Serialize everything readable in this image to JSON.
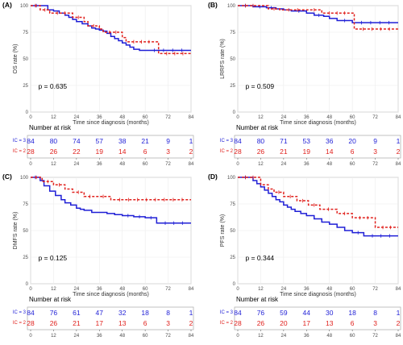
{
  "colors": {
    "ic3": "#1f1fd6",
    "ic2": "#e0211d",
    "grid": "#ececec",
    "frame": "#b3b3b3"
  },
  "chart_data": [
    {
      "type": "line",
      "panel": "(A)",
      "xlabel": "Time since diagnosis (months)",
      "ylabel": "OS rate (%)",
      "xlim": [
        0,
        84
      ],
      "ylim": [
        0,
        100
      ],
      "x_ticks": [
        0,
        12,
        24,
        36,
        48,
        60,
        72,
        84
      ],
      "y_ticks": [
        0,
        25,
        50,
        75,
        100
      ],
      "grid": true,
      "p_value": "p = 0.635",
      "series": [
        {
          "name": "IC = 3",
          "style": "solid",
          "x": [
            0,
            6,
            9,
            12,
            15,
            18,
            20,
            22,
            24,
            27,
            30,
            32,
            34,
            36,
            38,
            40,
            42,
            44,
            46,
            48,
            50,
            52,
            54,
            57,
            60,
            84
          ],
          "values": [
            100,
            100,
            96,
            95,
            93,
            91,
            89,
            87,
            85,
            83,
            81,
            79,
            78,
            77,
            76,
            74,
            71,
            69,
            67,
            65,
            63,
            61,
            59,
            58,
            58,
            58
          ]
        },
        {
          "name": "IC = 2",
          "style": "dashed",
          "x": [
            0,
            5,
            10,
            22,
            28,
            30,
            36,
            38,
            48,
            50,
            66,
            67,
            84
          ],
          "values": [
            100,
            96,
            93,
            89,
            85,
            81,
            78,
            75,
            70,
            66,
            66,
            55,
            55
          ]
        }
      ],
      "risk_table": {
        "title": "Number at risk",
        "times": [
          0,
          12,
          24,
          36,
          48,
          60,
          72,
          84
        ],
        "rows": [
          {
            "label": "IC = 3",
            "values": [
              84,
              80,
              74,
              57,
              38,
              21,
              9,
              1
            ]
          },
          {
            "label": "IC = 2",
            "values": [
              28,
              26,
              22,
              19,
              14,
              6,
              3,
              2
            ]
          }
        ]
      }
    },
    {
      "type": "line",
      "panel": "(B)",
      "xlabel": "Time since diagnosis (months)",
      "ylabel": "LRRFS rate (%)",
      "xlim": [
        0,
        84
      ],
      "ylim": [
        0,
        100
      ],
      "x_ticks": [
        0,
        12,
        24,
        36,
        48,
        60,
        72,
        84
      ],
      "y_ticks": [
        0,
        25,
        50,
        75,
        100
      ],
      "grid": true,
      "p_value": "p = 0.509",
      "series": [
        {
          "name": "IC = 3",
          "style": "solid",
          "x": [
            0,
            8,
            15,
            20,
            24,
            28,
            36,
            40,
            45,
            48,
            52,
            60,
            84
          ],
          "values": [
            100,
            99,
            98,
            97,
            96,
            95,
            93,
            91,
            90,
            88,
            86,
            84,
            84
          ]
        },
        {
          "name": "IC = 2",
          "style": "dashed",
          "x": [
            0,
            12,
            16,
            22,
            36,
            44,
            60,
            61,
            84
          ],
          "values": [
            100,
            100,
            97,
            96,
            96,
            93,
            93,
            78,
            78
          ]
        }
      ],
      "risk_table": {
        "title": "Number at risk",
        "times": [
          0,
          12,
          24,
          36,
          48,
          60,
          72,
          84
        ],
        "rows": [
          {
            "label": "IC = 3",
            "values": [
              84,
              80,
              71,
              53,
              36,
              20,
              9,
              1
            ]
          },
          {
            "label": "IC = 2",
            "values": [
              28,
              26,
              21,
              19,
              14,
              6,
              3,
              2
            ]
          }
        ]
      }
    },
    {
      "type": "line",
      "panel": "(C)",
      "xlabel": "Time since diagnosis (months)",
      "ylabel": "DMFS rate (%)",
      "xlim": [
        0,
        84
      ],
      "ylim": [
        0,
        100
      ],
      "x_ticks": [
        0,
        12,
        24,
        36,
        48,
        60,
        72,
        84
      ],
      "y_ticks": [
        0,
        25,
        50,
        75,
        100
      ],
      "grid": true,
      "p_value": "p = 0.125",
      "series": [
        {
          "name": "IC = 3",
          "style": "solid",
          "x": [
            0,
            5,
            7,
            10,
            13,
            16,
            18,
            21,
            24,
            26,
            28,
            32,
            36,
            40,
            44,
            48,
            54,
            60,
            66,
            84
          ],
          "values": [
            100,
            97,
            92,
            87,
            83,
            79,
            76,
            74,
            71,
            70,
            69,
            67,
            67,
            66,
            65,
            64,
            63,
            62,
            57,
            57
          ]
        },
        {
          "name": "IC = 2",
          "style": "dashed",
          "x": [
            0,
            6,
            12,
            18,
            22,
            28,
            34,
            42,
            84
          ],
          "values": [
            100,
            96,
            93,
            89,
            86,
            82,
            82,
            79,
            79
          ]
        }
      ],
      "risk_table": {
        "title": "Number at risk",
        "times": [
          0,
          12,
          24,
          36,
          48,
          60,
          72,
          84
        ],
        "rows": [
          {
            "label": "IC = 3",
            "values": [
              84,
              76,
              61,
              47,
              32,
              18,
              8,
              1
            ]
          },
          {
            "label": "IC = 2",
            "values": [
              28,
              26,
              21,
              17,
              13,
              6,
              3,
              2
            ]
          }
        ]
      }
    },
    {
      "type": "line",
      "panel": "(D)",
      "xlabel": "Time since diagnosis (months)",
      "ylabel": "PFS rate (%)",
      "xlim": [
        0,
        84
      ],
      "ylim": [
        0,
        100
      ],
      "x_ticks": [
        0,
        12,
        24,
        36,
        48,
        60,
        72,
        84
      ],
      "y_ticks": [
        0,
        25,
        50,
        75,
        100
      ],
      "grid": true,
      "p_value": "p = 0.344",
      "series": [
        {
          "name": "IC = 3",
          "style": "solid",
          "x": [
            0,
            8,
            10,
            12,
            14,
            16,
            18,
            20,
            22,
            24,
            26,
            28,
            30,
            33,
            36,
            40,
            44,
            48,
            52,
            56,
            60,
            66,
            84
          ],
          "values": [
            100,
            97,
            94,
            91,
            88,
            85,
            82,
            79,
            77,
            74,
            72,
            70,
            68,
            66,
            64,
            61,
            58,
            56,
            53,
            50,
            48,
            45,
            45
          ]
        },
        {
          "name": "IC = 2",
          "style": "dashed",
          "x": [
            0,
            12,
            16,
            19,
            24,
            31,
            37,
            43,
            52,
            60,
            72,
            84
          ],
          "values": [
            100,
            93,
            89,
            86,
            82,
            78,
            74,
            70,
            66,
            62,
            53,
            53
          ]
        }
      ],
      "risk_table": {
        "title": "Number at risk",
        "times": [
          0,
          12,
          24,
          36,
          48,
          60,
          72,
          84
        ],
        "rows": [
          {
            "label": "IC = 3",
            "values": [
              84,
              76,
              59,
              44,
              30,
              18,
              8,
              1
            ]
          },
          {
            "label": "IC = 2",
            "values": [
              28,
              26,
              20,
              17,
              13,
              6,
              3,
              2
            ]
          }
        ]
      }
    }
  ]
}
